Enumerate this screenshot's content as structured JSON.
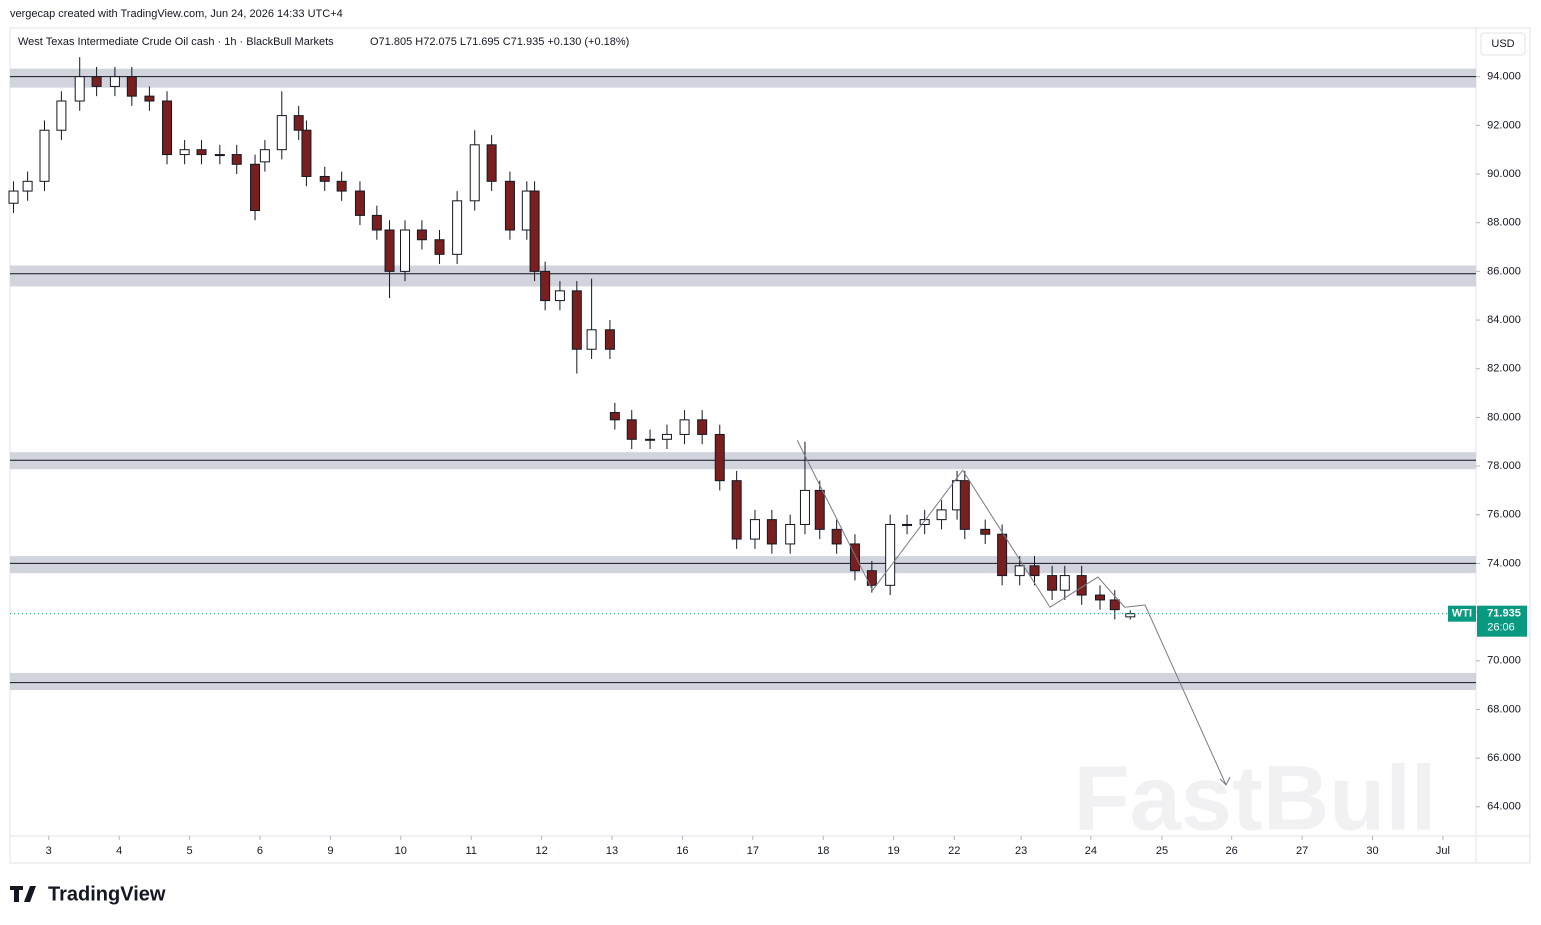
{
  "header": "vergecap created with TradingView.com, Jun 24, 2026 14:33 UTC+4",
  "brand": "TradingView",
  "chart_data": {
    "type": "candlestick",
    "symbol_info": "West Texas Intermediate Crude Oil cash · 1h · BlackBull Markets",
    "ohlc_legend": "O71.805  H72.075  L71.695  C71.935  +0.130 (+0.18%)",
    "currency": "USD",
    "symbol_tag": "WTI",
    "last_price": 71.935,
    "countdown": "26:06",
    "watermark": "FastBull",
    "up_color": "#ffffff",
    "down_color": "#7a1f1f",
    "wick_color": "#131722",
    "tag_color": "#089981",
    "zone_color": "#d1d4dc",
    "x": [
      -0.5,
      -0.3,
      -0.06,
      0.18,
      0.44,
      0.68,
      0.94,
      1.18,
      1.43,
      1.68,
      1.93,
      2.17,
      2.43,
      2.67,
      2.93,
      3.07,
      3.31,
      3.55,
      3.66,
      3.92,
      4.16,
      4.42,
      4.66,
      4.84,
      5.06,
      5.3,
      5.55,
      5.8,
      6.05,
      6.29,
      6.55,
      6.79,
      6.9,
      7.05,
      7.26,
      7.5,
      7.71,
      7.97,
      8.04,
      8.28,
      8.54,
      8.78,
      9.03,
      9.28,
      9.53,
      9.77,
      10.03,
      10.27,
      10.53,
      10.74,
      10.95,
      11.19,
      11.45,
      11.69,
      11.95,
      12.19,
      12.44,
      12.68,
      12.9,
      13.01,
      13.3,
      13.54,
      13.79,
      14.0,
      14.25,
      14.43,
      14.67,
      14.93,
      15.14,
      15.36
    ],
    "open": [
      88.8,
      89.3,
      89.7,
      91.8,
      93.0,
      94.0,
      93.6,
      94.0,
      93.2,
      93.0,
      90.8,
      91.0,
      90.8,
      90.8,
      90.4,
      90.5,
      91.0,
      92.4,
      91.8,
      89.9,
      89.7,
      89.3,
      88.3,
      87.7,
      86.0,
      87.7,
      87.3,
      86.7,
      88.9,
      91.2,
      89.7,
      87.7,
      89.3,
      86.0,
      84.8,
      85.2,
      82.8,
      83.6,
      80.2,
      79.9,
      79.1,
      79.1,
      79.3,
      79.9,
      79.3,
      77.4,
      75.0,
      75.8,
      74.8,
      75.6,
      77.0,
      75.4,
      74.8,
      73.7,
      73.1,
      75.6,
      75.6,
      75.8,
      76.2,
      77.4,
      75.4,
      75.2,
      73.5,
      73.9,
      73.5,
      72.9,
      73.5,
      72.7,
      72.5,
      71.805
    ],
    "high": [
      89.7,
      90.1,
      92.2,
      93.4,
      94.8,
      94.4,
      94.4,
      94.4,
      93.6,
      93.4,
      91.4,
      91.4,
      91.2,
      91.2,
      90.8,
      91.4,
      93.4,
      92.8,
      92.2,
      90.3,
      90.1,
      89.7,
      88.7,
      88.1,
      88.1,
      88.1,
      87.7,
      89.3,
      91.8,
      91.6,
      90.1,
      89.7,
      89.7,
      86.4,
      85.6,
      85.6,
      85.7,
      84.0,
      80.6,
      80.3,
      79.5,
      79.7,
      80.3,
      80.3,
      79.7,
      77.8,
      76.2,
      76.2,
      76.0,
      79.0,
      77.4,
      75.8,
      75.2,
      74.1,
      76.0,
      76.0,
      76.2,
      76.6,
      77.8,
      77.8,
      75.8,
      75.6,
      74.3,
      74.3,
      73.9,
      73.9,
      73.9,
      73.1,
      72.9,
      72.075
    ],
    "low": [
      88.4,
      88.9,
      89.3,
      91.4,
      92.6,
      93.2,
      93.2,
      92.8,
      92.6,
      90.4,
      90.4,
      90.4,
      90.4,
      90.0,
      88.1,
      90.1,
      90.6,
      91.4,
      89.5,
      89.3,
      88.9,
      87.9,
      87.3,
      84.9,
      85.6,
      86.9,
      86.3,
      86.3,
      88.5,
      89.3,
      87.3,
      87.3,
      85.6,
      84.4,
      84.4,
      81.8,
      82.4,
      82.4,
      79.5,
      78.7,
      78.7,
      78.7,
      78.9,
      78.9,
      77.0,
      74.6,
      74.6,
      74.4,
      74.4,
      75.2,
      75.0,
      74.4,
      73.3,
      72.8,
      72.7,
      75.2,
      75.2,
      75.4,
      75.8,
      75.0,
      74.8,
      73.1,
      73.1,
      73.1,
      72.5,
      72.5,
      72.3,
      72.1,
      71.7,
      71.695
    ],
    "close": [
      89.3,
      89.7,
      91.8,
      93.0,
      94.0,
      93.6,
      94.0,
      93.2,
      93.0,
      90.8,
      91.0,
      90.8,
      90.8,
      90.4,
      88.5,
      91.0,
      92.4,
      91.8,
      89.9,
      89.7,
      89.3,
      88.3,
      87.7,
      86.0,
      87.7,
      87.3,
      86.7,
      88.9,
      91.2,
      89.7,
      87.7,
      89.3,
      86.0,
      84.8,
      85.2,
      82.8,
      83.6,
      82.8,
      79.9,
      79.1,
      79.1,
      79.3,
      79.9,
      79.3,
      77.4,
      75.0,
      75.8,
      74.8,
      75.6,
      77.0,
      75.4,
      74.8,
      73.7,
      73.1,
      75.6,
      75.6,
      75.8,
      76.2,
      77.4,
      75.4,
      75.2,
      73.5,
      73.9,
      73.5,
      72.9,
      73.5,
      72.7,
      72.5,
      72.1,
      71.935
    ],
    "zones": [
      {
        "low": 93.55,
        "high": 94.33,
        "line": 94.0
      },
      {
        "low": 85.38,
        "high": 86.24,
        "line": 85.9
      },
      {
        "low": 77.87,
        "high": 78.57,
        "line": 78.24
      },
      {
        "low": 73.6,
        "high": 74.3,
        "line": 74.0
      },
      {
        "low": 68.8,
        "high": 69.5,
        "line": 69.1
      }
    ],
    "projection": {
      "x": [
        10.63,
        11.7,
        12.98,
        14.22,
        14.9,
        15.28,
        15.57,
        16.72
      ],
      "values": [
        79.06,
        72.9,
        77.83,
        72.2,
        73.44,
        72.2,
        72.29,
        64.9
      ]
    },
    "xlim": [
      -0.55,
      20.27
    ],
    "ylim": [
      62.8,
      96.0
    ],
    "xticks": [
      {
        "value": 0,
        "label": "3"
      },
      {
        "value": 1,
        "label": "4"
      },
      {
        "value": 2,
        "label": "5"
      },
      {
        "value": 3,
        "label": "6"
      },
      {
        "value": 4,
        "label": "9"
      },
      {
        "value": 5,
        "label": "10"
      },
      {
        "value": 6,
        "label": "11"
      },
      {
        "value": 7,
        "label": "12"
      },
      {
        "value": 8,
        "label": "13"
      },
      {
        "value": 9,
        "label": "16"
      },
      {
        "value": 10,
        "label": "17"
      },
      {
        "value": 11,
        "label": "18"
      },
      {
        "value": 12,
        "label": "19"
      },
      {
        "value": 12.86,
        "label": "22"
      },
      {
        "value": 13.81,
        "label": "23"
      },
      {
        "value": 14.8,
        "label": "24"
      },
      {
        "value": 15.81,
        "label": "25"
      },
      {
        "value": 16.8,
        "label": "26"
      },
      {
        "value": 17.8,
        "label": "27"
      },
      {
        "value": 18.8,
        "label": "30"
      },
      {
        "value": 19.8,
        "label": "Jul"
      }
    ],
    "yticks": [
      {
        "value": 64,
        "label": "64.000"
      },
      {
        "value": 66,
        "label": "66.000"
      },
      {
        "value": 68,
        "label": "68.000"
      },
      {
        "value": 70,
        "label": "70.000"
      },
      {
        "value": 72,
        "label": "72.000"
      },
      {
        "value": 74,
        "label": "74.000"
      },
      {
        "value": 76,
        "label": "76.000"
      },
      {
        "value": 78,
        "label": "78.000"
      },
      {
        "value": 80,
        "label": "80.000"
      },
      {
        "value": 82,
        "label": "82.000"
      },
      {
        "value": 84,
        "label": "84.000"
      },
      {
        "value": 86,
        "label": "86.000"
      },
      {
        "value": 88,
        "label": "88.000"
      },
      {
        "value": 90,
        "label": "90.000"
      },
      {
        "value": 92,
        "label": "92.000"
      },
      {
        "value": 94,
        "label": "94.000"
      }
    ]
  }
}
